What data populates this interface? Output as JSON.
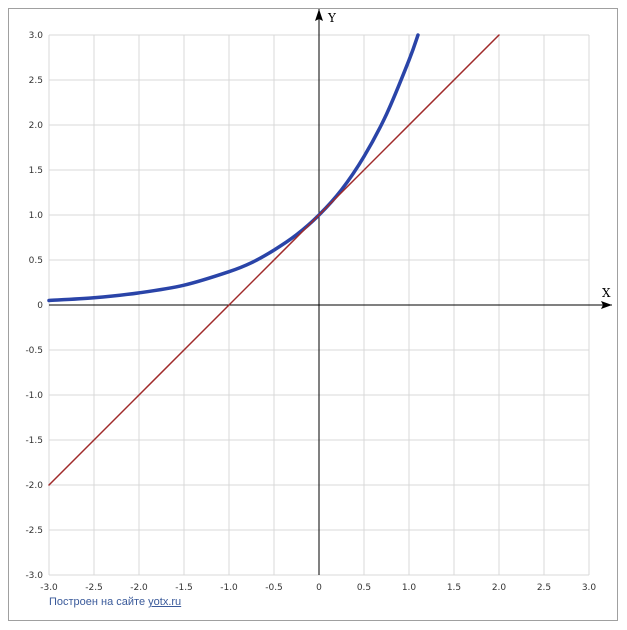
{
  "credit": {
    "text": "Построен на сайте",
    "link": "yotx.ru"
  },
  "colors": {
    "curve": "#2a44a8",
    "tangent": "#a02a2a",
    "grid": "#d8d8d8",
    "axis": "#000000"
  },
  "chart_data": {
    "type": "line",
    "title": "",
    "xlabel": "X",
    "ylabel": "Y",
    "xlim": [
      -3.0,
      3.0
    ],
    "ylim": [
      -3.0,
      3.0
    ],
    "grid": true,
    "x_ticks": [
      "-3.0",
      "-2.5",
      "-2.0",
      "-1.5",
      "-1.0",
      "-0.5",
      "0",
      "0.5",
      "1.0",
      "1.5",
      "2.0",
      "2.5",
      "3.0"
    ],
    "y_ticks": [
      "-3.0",
      "-2.5",
      "-2.0",
      "-1.5",
      "-1.0",
      "-0.5",
      "0",
      "0.5",
      "1.0",
      "1.5",
      "2.0",
      "2.5",
      "3.0"
    ],
    "series": [
      {
        "color": "#2a44a8",
        "x": [
          -3.0,
          -2.5,
          -2.0,
          -1.5,
          -1.0,
          -0.75,
          -0.5,
          -0.25,
          0.0,
          0.25,
          0.5,
          0.75,
          1.0,
          1.1
        ],
        "y": [
          0.05,
          0.08,
          0.135,
          0.22,
          0.37,
          0.47,
          0.61,
          0.78,
          1.0,
          1.28,
          1.65,
          2.12,
          2.72,
          3.0
        ]
      },
      {
        "color": "#a02a2a",
        "x": [
          -3.0,
          2.0
        ],
        "y": [
          -2.0,
          3.0
        ]
      }
    ]
  }
}
